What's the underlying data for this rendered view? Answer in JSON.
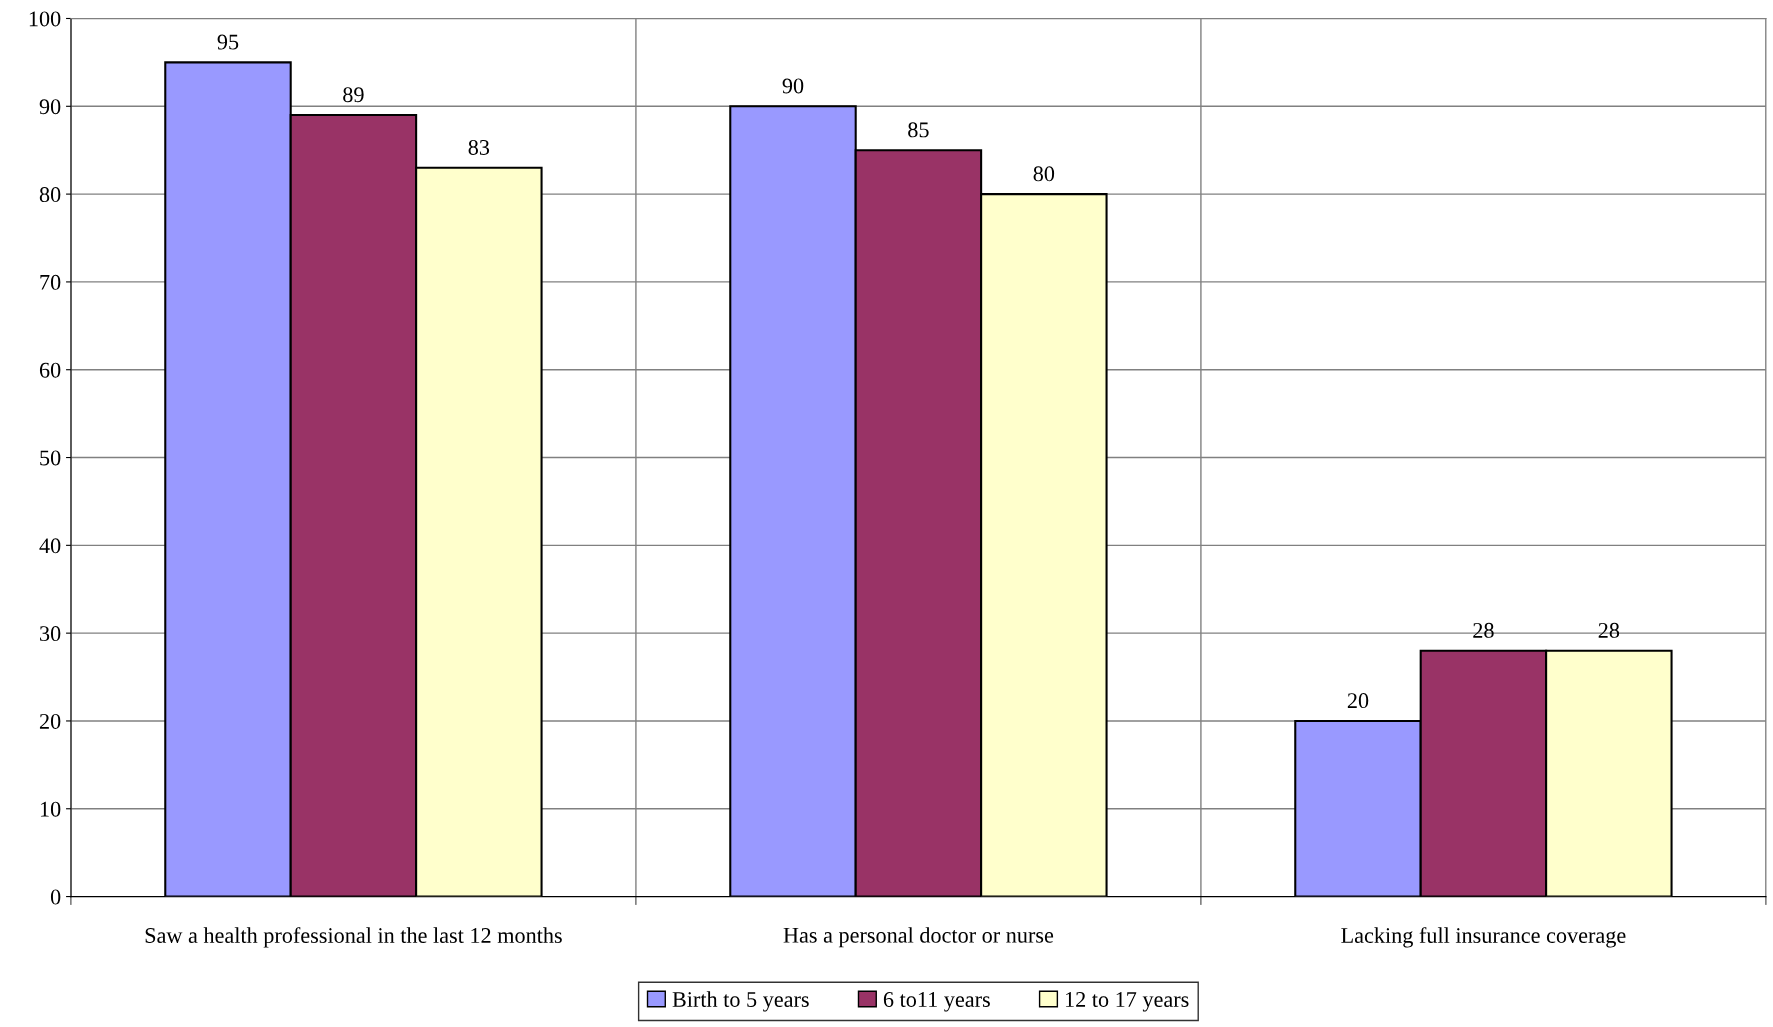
{
  "chart_data": {
    "type": "bar",
    "categories": [
      "Saw a health professional in the last 12 months",
      "Has a personal doctor or nurse",
      "Lacking full insurance coverage"
    ],
    "series": [
      {
        "name": "Birth to 5 years",
        "color": "#9999ff",
        "values": [
          95,
          90,
          20
        ]
      },
      {
        "name": "6 to11 years",
        "color": "#993366",
        "values": [
          89,
          85,
          28
        ]
      },
      {
        "name": "12 to 17 years",
        "color": "#ffffcc",
        "values": [
          83,
          80,
          28
        ]
      }
    ],
    "ylim": [
      0,
      100
    ],
    "yticks": [
      0,
      10,
      20,
      30,
      40,
      50,
      60,
      70,
      80,
      90,
      100
    ],
    "grid": true,
    "legend": "bottom",
    "data_labels": true
  }
}
